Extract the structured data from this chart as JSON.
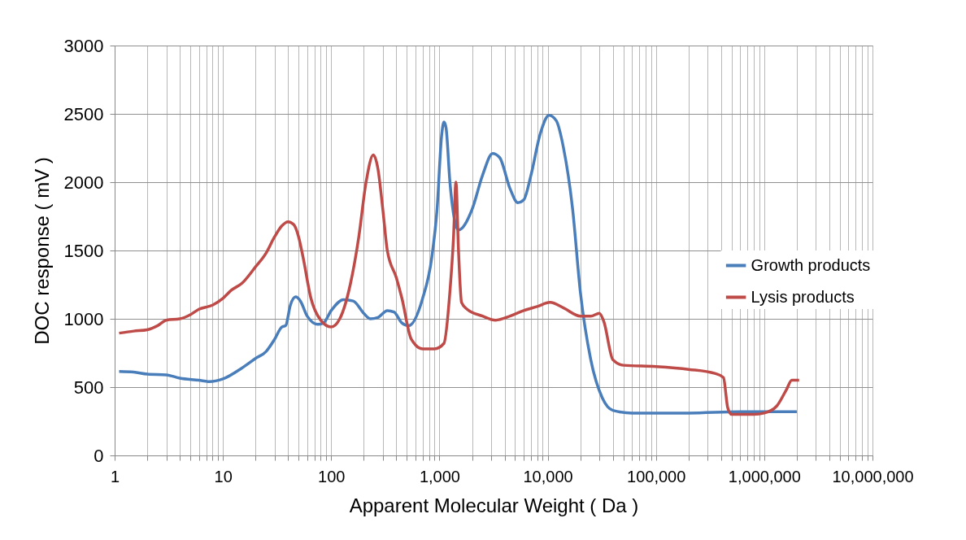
{
  "chart_data": {
    "type": "line",
    "xlabel": "Apparent Molecular Weight ( Da )",
    "ylabel": "DOC response ( mV )",
    "log": "x",
    "grid": true,
    "legend": "right",
    "line_style": "solid",
    "marker": "none",
    "xlim": [
      1,
      10000000
    ],
    "ylim": [
      0,
      3000
    ],
    "yticks": [
      0,
      500,
      1000,
      1500,
      2000,
      2500,
      3000
    ],
    "xticks": [
      1,
      {
        "value": 2,
        "label": null
      },
      {
        "value": 3,
        "label": null
      },
      {
        "value": 4,
        "label": null
      },
      {
        "value": 5,
        "label": null
      },
      {
        "value": 6,
        "label": null
      },
      {
        "value": 7,
        "label": null
      },
      {
        "value": 8,
        "label": null
      },
      {
        "value": 9,
        "label": null
      },
      10,
      {
        "value": 20,
        "label": null
      },
      {
        "value": 30,
        "label": null
      },
      {
        "value": 40,
        "label": null
      },
      {
        "value": 50,
        "label": null
      },
      {
        "value": 60,
        "label": null
      },
      {
        "value": 70,
        "label": null
      },
      {
        "value": 80,
        "label": null
      },
      {
        "value": 90,
        "label": null
      },
      100,
      {
        "value": 200,
        "label": null
      },
      {
        "value": 300,
        "label": null
      },
      {
        "value": 400,
        "label": null
      },
      {
        "value": 500,
        "label": null
      },
      {
        "value": 600,
        "label": null
      },
      {
        "value": 700,
        "label": null
      },
      {
        "value": 800,
        "label": null
      },
      {
        "value": 900,
        "label": null
      },
      {
        "value": 1000,
        "label": "1,000"
      },
      {
        "value": 2000,
        "label": null
      },
      {
        "value": 3000,
        "label": null
      },
      {
        "value": 4000,
        "label": null
      },
      {
        "value": 5000,
        "label": null
      },
      {
        "value": 6000,
        "label": null
      },
      {
        "value": 7000,
        "label": null
      },
      {
        "value": 8000,
        "label": null
      },
      {
        "value": 9000,
        "label": null
      },
      {
        "value": 10000,
        "label": "10,000"
      },
      {
        "value": 20000,
        "label": null
      },
      {
        "value": 30000,
        "label": null
      },
      {
        "value": 40000,
        "label": null
      },
      {
        "value": 50000,
        "label": null
      },
      {
        "value": 60000,
        "label": null
      },
      {
        "value": 70000,
        "label": null
      },
      {
        "value": 80000,
        "label": null
      },
      {
        "value": 90000,
        "label": null
      },
      {
        "value": 100000,
        "label": "100,000"
      },
      {
        "value": 200000,
        "label": null
      },
      {
        "value": 300000,
        "label": null
      },
      {
        "value": 400000,
        "label": null
      },
      {
        "value": 500000,
        "label": null
      },
      {
        "value": 600000,
        "label": null
      },
      {
        "value": 700000,
        "label": null
      },
      {
        "value": 800000,
        "label": null
      },
      {
        "value": 900000,
        "label": null
      },
      {
        "value": 1000000,
        "label": "1,000,000"
      },
      {
        "value": 2000000,
        "label": null
      },
      {
        "value": 3000000,
        "label": null
      },
      {
        "value": 4000000,
        "label": null
      },
      {
        "value": 5000000,
        "label": null
      },
      {
        "value": 6000000,
        "label": null
      },
      {
        "value": 7000000,
        "label": null
      },
      {
        "value": 8000000,
        "label": null
      },
      {
        "value": 9000000,
        "label": null
      },
      {
        "value": 10000000,
        "label": "10,000,000"
      }
    ],
    "series": [
      {
        "name": "Growth products",
        "color": "#4a7ebb",
        "x": [
          1.1,
          1.5,
          2,
          3,
          4,
          6,
          7.5,
          10,
          15,
          20,
          25,
          30,
          35,
          38,
          42,
          47,
          52,
          60,
          75,
          85,
          100,
          130,
          160,
          200,
          230,
          270,
          330,
          380,
          450,
          520,
          700,
          850,
          950,
          1050,
          1100,
          1150,
          1250,
          1400,
          1500,
          2000,
          2500,
          3100,
          3600,
          4500,
          5300,
          6000,
          7000,
          8500,
          10300,
          12000,
          14000,
          17000,
          20000,
          25000,
          32000,
          40000,
          60000,
          200000,
          600000,
          1000000,
          2000000
        ],
        "values": [
          615,
          610,
          595,
          590,
          565,
          550,
          540,
          560,
          640,
          710,
          760,
          850,
          940,
          950,
          1100,
          1160,
          1130,
          1020,
          960,
          970,
          1060,
          1140,
          1130,
          1040,
          1000,
          1010,
          1060,
          1050,
          970,
          950,
          1150,
          1450,
          1800,
          2350,
          2440,
          2400,
          2000,
          1700,
          1650,
          1800,
          2050,
          2210,
          2180,
          1950,
          1850,
          1870,
          2050,
          2350,
          2490,
          2450,
          2250,
          1800,
          1200,
          700,
          420,
          330,
          310,
          310,
          320,
          320,
          320
        ]
      },
      {
        "name": "Lysis products",
        "color": "#be4b48",
        "x": [
          1.1,
          1.5,
          2,
          2.5,
          3,
          4,
          5,
          6,
          8,
          10,
          12,
          15,
          20,
          25,
          30,
          35,
          40,
          45,
          50,
          55,
          65,
          80,
          100,
          120,
          150,
          180,
          210,
          245,
          270,
          300,
          330,
          400,
          450,
          550,
          700,
          900,
          1100,
          1250,
          1350,
          1420,
          1500,
          1600,
          1800,
          2500,
          3300,
          4500,
          6000,
          8000,
          10500,
          14000,
          20000,
          25000,
          30000,
          33000,
          40000,
          50000,
          100000,
          200000,
          350000,
          420000,
          460000,
          500000,
          800000,
          1000000,
          1300000,
          1600000,
          1800000,
          2100000
        ],
        "values": [
          895,
          910,
          920,
          950,
          990,
          1000,
          1030,
          1070,
          1100,
          1150,
          1210,
          1260,
          1380,
          1480,
          1600,
          1680,
          1710,
          1690,
          1600,
          1450,
          1150,
          990,
          940,
          1000,
          1250,
          1600,
          2000,
          2200,
          2100,
          1800,
          1500,
          1300,
          1150,
          850,
          780,
          780,
          820,
          1200,
          1600,
          2000,
          1500,
          1120,
          1070,
          1020,
          990,
          1020,
          1060,
          1090,
          1120,
          1080,
          1020,
          1020,
          1040,
          980,
          700,
          660,
          650,
          630,
          600,
          570,
          350,
          300,
          300,
          310,
          360,
          480,
          550,
          550
        ]
      }
    ]
  }
}
